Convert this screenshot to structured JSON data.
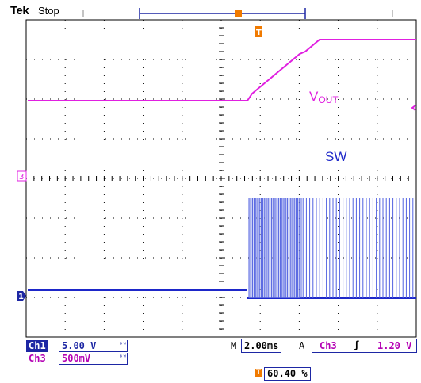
{
  "header": {
    "brand": "Tek",
    "acq_state": "Stop"
  },
  "traces": {
    "vout_label_main": "V",
    "vout_label_sub": "OUT",
    "sw_label": "SW"
  },
  "markers": {
    "ch3_marker": "3",
    "ch1_marker": "1",
    "trigger_marker": "T"
  },
  "readout": {
    "ch1_label": "Ch1",
    "ch1_scale": "5.00 V",
    "ch3_label": "Ch3",
    "ch3_scale": "500mV",
    "coupling_symbol": "ᴮᵂ",
    "timebase_prefix": "M",
    "timebase": "2.00ms",
    "trigger_mode": "A",
    "trigger_source": "Ch3",
    "trigger_slope": "ʃ",
    "trigger_level": "1.20 V",
    "trigger_pos_icon": "T",
    "trigger_position": "60.40 %"
  },
  "colors": {
    "ch1": "#1d27a4",
    "ch3": "#e020e0",
    "trigger": "#f07a00",
    "grid": "#000000"
  }
}
